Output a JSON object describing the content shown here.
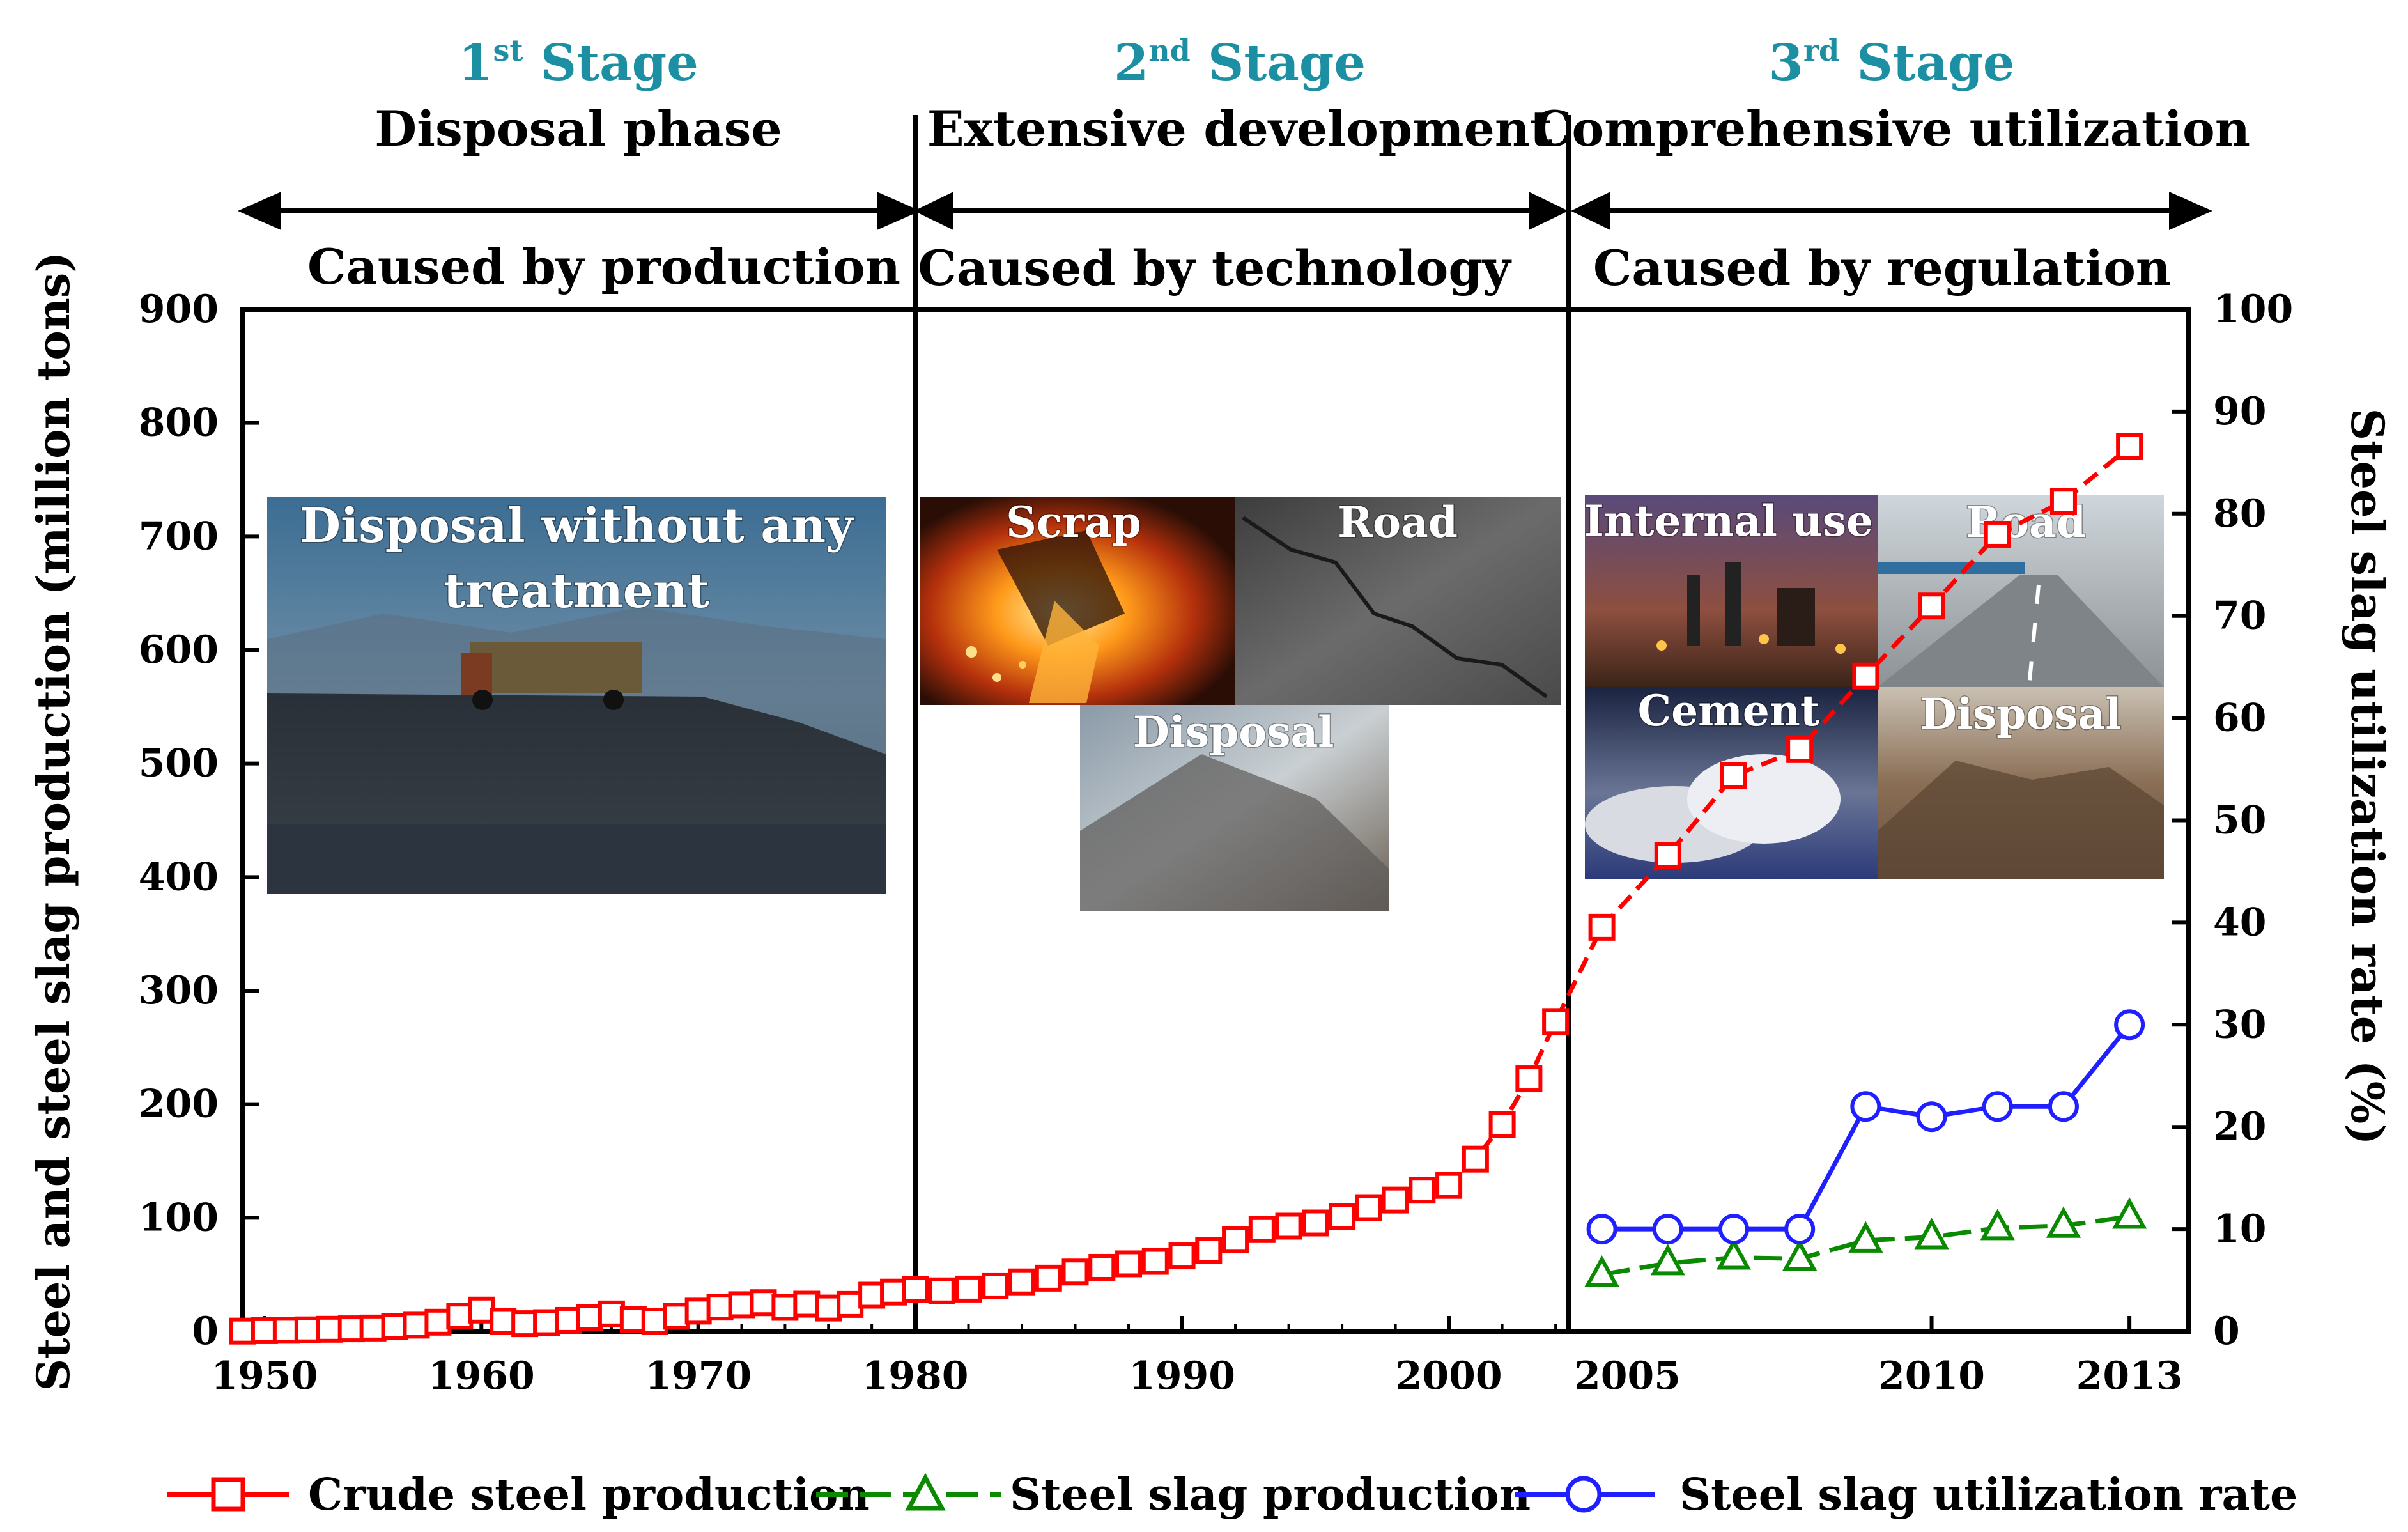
{
  "stages": [
    {
      "num": "1",
      "sup": "st",
      "word": "Stage",
      "name": "Disposal phase",
      "cause": "Caused by production"
    },
    {
      "num": "2",
      "sup": "nd",
      "word": "Stage",
      "name": "Extensive development",
      "cause": "Caused by technology"
    },
    {
      "num": "3",
      "sup": "rd",
      "word": "Stage",
      "name": "Comprehensive utilization",
      "cause": "Caused by regulation"
    }
  ],
  "photos": [
    {
      "label_lines": [
        "Disposal without any",
        "treatment"
      ],
      "icon": "dump-truck-landfill-photo"
    },
    {
      "label_lines": [
        "Scrap"
      ],
      "icon": "molten-steel-pouring-photo"
    },
    {
      "label_lines": [
        "Road"
      ],
      "icon": "cracked-asphalt-photo"
    },
    {
      "label_lines": [
        "Disposal"
      ],
      "icon": "slag-heap-photo"
    },
    {
      "label_lines": [
        "Internal use"
      ],
      "icon": "steel-plant-night-photo"
    },
    {
      "label_lines": [
        "Road"
      ],
      "icon": "highway-photo"
    },
    {
      "label_lines": [
        "Cement"
      ],
      "icon": "cement-powder-photo"
    },
    {
      "label_lines": [
        "Disposal"
      ],
      "icon": "slag-pile-photo"
    }
  ],
  "chart_data": {
    "type": "line",
    "segments": [
      {
        "x_ticks": [
          "1950",
          "1960",
          "1970",
          "1980"
        ]
      },
      {
        "x_ticks": [
          "1980",
          "1990",
          "2000"
        ]
      },
      {
        "x_ticks": [
          "2005",
          "2010",
          "2013"
        ]
      }
    ],
    "y_left": {
      "label": "Steel and steel slag production (million tons)",
      "lim": [
        0,
        900
      ],
      "ticks": [
        "0",
        "100",
        "200",
        "300",
        "400",
        "500",
        "600",
        "700",
        "800",
        "900"
      ]
    },
    "y_right": {
      "label": "Steel slag utilization rate (%)",
      "lim": [
        0,
        100
      ],
      "ticks": [
        "0",
        "10",
        "20",
        "30",
        "40",
        "50",
        "60",
        "70",
        "80",
        "90",
        "100"
      ]
    },
    "series": [
      {
        "name": "Crude steel production",
        "color": "#ff0000",
        "marker": "square",
        "axis": "left",
        "x": [
          1949,
          1950,
          1951,
          1952,
          1953,
          1954,
          1955,
          1956,
          1957,
          1958,
          1959,
          1960,
          1961,
          1962,
          1963,
          1964,
          1965,
          1966,
          1967,
          1968,
          1969,
          1970,
          1971,
          1972,
          1973,
          1974,
          1975,
          1976,
          1977,
          1978,
          1979,
          1980,
          1981,
          1982,
          1983,
          1984,
          1985,
          1986,
          1987,
          1988,
          1989,
          1990,
          1991,
          1992,
          1993,
          1994,
          1995,
          1996,
          1997,
          1998,
          1999,
          2000,
          2001,
          2002,
          2003,
          2004,
          2005,
          2006,
          2007,
          2008,
          2009,
          2010,
          2011,
          2012,
          2013
        ],
        "y": [
          0.2,
          0.6,
          0.9,
          1.3,
          1.8,
          2.2,
          2.9,
          4.5,
          5.4,
          8,
          13.4,
          18.7,
          8.7,
          6.7,
          7.6,
          9.6,
          12.2,
          15.3,
          10.3,
          9,
          13.3,
          17.8,
          21.3,
          23.4,
          25.2,
          21.1,
          23.9,
          20.5,
          23.7,
          31.8,
          34.5,
          37.1,
          35.6,
          37.2,
          40,
          43.5,
          46.8,
          52.2,
          56.3,
          59.4,
          61.6,
          66.4,
          71,
          80.9,
          89.6,
          92.6,
          95.4,
          101.2,
          108.9,
          115.6,
          124.3,
          128.5,
          151.6,
          182.3,
          222.3,
          272.8,
          355.8,
          419.1,
          489.3,
          512.3,
          577.1,
          638.7,
          701.9,
          731,
          779
        ]
      },
      {
        "name": "Steel slag production",
        "color": "#0a8a00",
        "marker": "triangle",
        "axis": "left",
        "x": [
          2005,
          2006,
          2007,
          2008,
          2009,
          2010,
          2011,
          2012,
          2013
        ],
        "y": [
          50,
          60,
          65,
          64,
          80,
          83,
          91,
          93,
          101
        ]
      },
      {
        "name": "Steel slag utilization rate",
        "color": "#1f1fff",
        "marker": "circle",
        "axis": "right",
        "x": [
          2005,
          2006,
          2007,
          2008,
          2009,
          2010,
          2011,
          2012,
          2013
        ],
        "y": [
          10,
          10,
          10,
          10,
          22,
          21,
          22,
          22,
          30
        ]
      }
    ]
  }
}
